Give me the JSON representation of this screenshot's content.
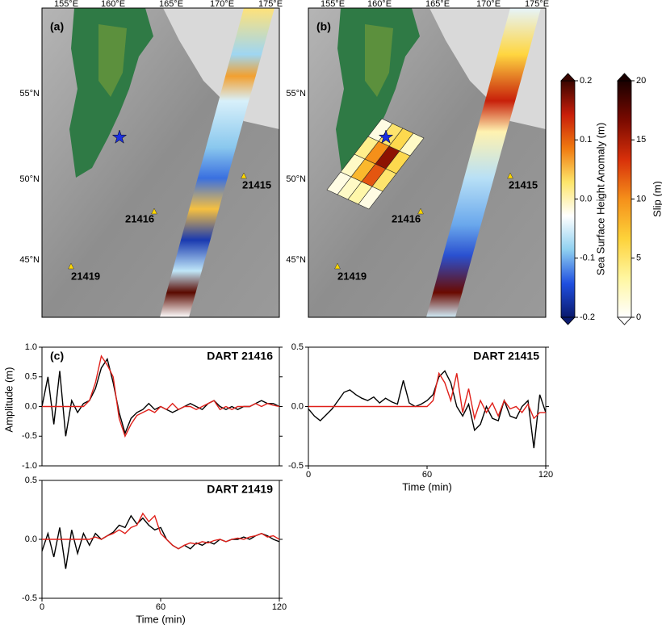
{
  "maps": {
    "panels": [
      {
        "label": "(a)"
      },
      {
        "label": "(b)"
      }
    ],
    "lon_labels": [
      "155°E",
      "160°E",
      "165°E",
      "170°E",
      "175°E"
    ],
    "lat_labels": [
      "55°N",
      "50°N",
      "45°N"
    ],
    "stations": [
      "21416",
      "21415",
      "21419"
    ],
    "slip": [
      [
        1,
        2,
        3,
        1
      ],
      [
        2,
        8,
        12,
        5
      ],
      [
        4,
        10,
        16,
        6
      ],
      [
        1,
        5,
        6,
        2
      ]
    ]
  },
  "colorbars": [
    {
      "label": "Sea Surface Height Anomaly (m)",
      "lim": [
        -0.2,
        0.2
      ],
      "ticks": [
        {
          "value": 0.2,
          "label": "0.2"
        },
        {
          "value": 0.1,
          "label": "0.1"
        },
        {
          "value": 0,
          "label": "0.0"
        },
        {
          "value": -0.1,
          "label": "-0.1"
        },
        {
          "value": -0.2,
          "label": "-0.2"
        }
      ],
      "colors": [
        "#0a1a6e",
        "#1f4fe0",
        "#8fd0f0",
        "#ffffff",
        "#fde56a",
        "#f07a10",
        "#c81e0a",
        "#3a0500"
      ]
    },
    {
      "label": "Slip (m)",
      "lim": [
        0,
        20
      ],
      "ticks": [
        20,
        15,
        10,
        5,
        0
      ],
      "colors": [
        "#ffffff",
        "#fff6a0",
        "#fdd23a",
        "#f5901a",
        "#d8300a",
        "#7a0a00",
        "#1a0000"
      ]
    }
  ],
  "chart_data": [
    {
      "type": "line",
      "title": "DART 21416",
      "panel_label": "(c)",
      "ylabel": "Amplitude (m)",
      "xlim": [
        0,
        120
      ],
      "ylim": [
        -1,
        1
      ],
      "yticks": [
        {
          "value": 1,
          "label": "1.0"
        },
        {
          "value": 0.5,
          "label": "0.5"
        },
        {
          "value": 0,
          "label": "0.0"
        },
        {
          "value": -0.5,
          "label": "-0.5"
        },
        {
          "value": -1,
          "label": "-1.0"
        }
      ],
      "x": [
        0,
        3,
        6,
        9,
        12,
        15,
        18,
        21,
        24,
        27,
        30,
        33,
        36,
        39,
        42,
        45,
        48,
        51,
        54,
        57,
        60,
        63,
        66,
        69,
        72,
        75,
        78,
        81,
        84,
        87,
        90,
        93,
        96,
        99,
        102,
        105,
        108,
        111,
        114,
        117,
        120
      ],
      "series": [
        {
          "color": "#000000",
          "values": [
            0,
            0.5,
            -0.3,
            0.6,
            -0.5,
            0.1,
            -0.1,
            0.05,
            0.1,
            0.3,
            0.65,
            0.8,
            0.4,
            -0.1,
            -0.45,
            -0.2,
            -0.1,
            -0.05,
            0.05,
            -0.05,
            0,
            -0.05,
            -0.1,
            -0.05,
            0,
            0.05,
            0,
            -0.05,
            0.05,
            0.1,
            0,
            -0.05,
            0,
            -0.05,
            0,
            0,
            0.05,
            0.1,
            0.05,
            0.05,
            0
          ]
        },
        {
          "color": "#e0201a",
          "values": [
            0,
            0,
            0,
            0,
            0,
            0,
            0,
            0,
            0.1,
            0.4,
            0.85,
            0.7,
            0.5,
            -0.2,
            -0.5,
            -0.3,
            -0.15,
            -0.1,
            -0.05,
            -0.1,
            0,
            -0.05,
            0.05,
            -0.05,
            0,
            0,
            -0.05,
            0,
            0.05,
            0.1,
            -0.05,
            0,
            -0.05,
            0,
            0,
            0,
            0.05,
            0,
            0.05,
            0.02,
            0
          ]
        }
      ]
    },
    {
      "type": "line",
      "title": "DART 21415",
      "xlabel": "Time (min)",
      "xlim": [
        0,
        120
      ],
      "ylim": [
        -0.5,
        0.5
      ],
      "xticks": [
        0,
        60,
        120
      ],
      "yticks": [
        {
          "value": 0.5,
          "label": "0.5"
        },
        {
          "value": 0,
          "label": "0.0"
        },
        {
          "value": -0.5,
          "label": "-0.5"
        }
      ],
      "x": [
        0,
        3,
        6,
        9,
        12,
        15,
        18,
        21,
        24,
        27,
        30,
        33,
        36,
        39,
        42,
        45,
        48,
        51,
        54,
        57,
        60,
        63,
        66,
        69,
        72,
        75,
        78,
        81,
        84,
        87,
        90,
        93,
        96,
        99,
        102,
        105,
        108,
        111,
        114,
        117,
        120
      ],
      "series": [
        {
          "color": "#000000",
          "values": [
            -0.02,
            -0.08,
            -0.12,
            -0.07,
            -0.02,
            0.05,
            0.12,
            0.14,
            0.1,
            0.07,
            0.05,
            0.08,
            0.03,
            0.07,
            0.04,
            0.02,
            0.22,
            0.03,
            0,
            0.02,
            0.05,
            0.1,
            0.25,
            0.3,
            0.2,
            0,
            -0.08,
            0.02,
            -0.2,
            -0.15,
            0,
            -0.1,
            -0.12,
            0.05,
            -0.08,
            -0.1,
            0,
            0.05,
            -0.35,
            0.1,
            -0.05
          ]
        },
        {
          "color": "#e0201a",
          "values": [
            0,
            0,
            0,
            0,
            0,
            0,
            0,
            0,
            0,
            0,
            0,
            0,
            0,
            0,
            0,
            0,
            0,
            0,
            0,
            0,
            0,
            0.05,
            0.28,
            0.2,
            0.05,
            0.28,
            -0.05,
            0.15,
            -0.1,
            0.05,
            -0.05,
            0.03,
            -0.08,
            0.05,
            -0.02,
            0,
            -0.05,
            0.02,
            -0.1,
            -0.05,
            -0.05
          ]
        }
      ]
    },
    {
      "type": "line",
      "title": "DART 21419",
      "xlabel": "Time (min)",
      "xlim": [
        0,
        120
      ],
      "ylim": [
        -0.5,
        0.5
      ],
      "xticks": [
        0,
        60,
        120
      ],
      "yticks": [
        {
          "value": 0.5,
          "label": "0.5"
        },
        {
          "value": 0,
          "label": "0.0"
        },
        {
          "value": -0.5,
          "label": "-0.5"
        }
      ],
      "x": [
        0,
        3,
        6,
        9,
        12,
        15,
        18,
        21,
        24,
        27,
        30,
        33,
        36,
        39,
        42,
        45,
        48,
        51,
        54,
        57,
        60,
        63,
        66,
        69,
        72,
        75,
        78,
        81,
        84,
        87,
        90,
        93,
        96,
        99,
        102,
        105,
        108,
        111,
        114,
        117,
        120
      ],
      "series": [
        {
          "color": "#000000",
          "values": [
            -0.1,
            0.05,
            -0.15,
            0.1,
            -0.25,
            0.08,
            -0.12,
            0.05,
            -0.05,
            0.05,
            0,
            0.03,
            0.06,
            0.12,
            0.1,
            0.2,
            0.13,
            0.18,
            0.12,
            0.08,
            0.1,
            0,
            -0.05,
            -0.08,
            -0.05,
            -0.08,
            -0.03,
            -0.05,
            -0.02,
            -0.04,
            0,
            -0.02,
            0,
            0,
            0.02,
            0,
            0.03,
            0.05,
            0.03,
            0,
            -0.02
          ]
        },
        {
          "color": "#e0201a",
          "values": [
            0,
            0,
            0,
            0,
            0,
            0,
            0,
            0,
            0,
            0.02,
            0,
            0.03,
            0.05,
            0.08,
            0.05,
            0.1,
            0.12,
            0.22,
            0.15,
            0.2,
            0.05,
            0,
            -0.05,
            -0.08,
            -0.05,
            -0.03,
            -0.04,
            -0.02,
            -0.03,
            -0.01,
            0,
            -0.02,
            0,
            0.01,
            0,
            0.02,
            0.03,
            0.05,
            0.02,
            0.03,
            0
          ]
        }
      ]
    }
  ]
}
